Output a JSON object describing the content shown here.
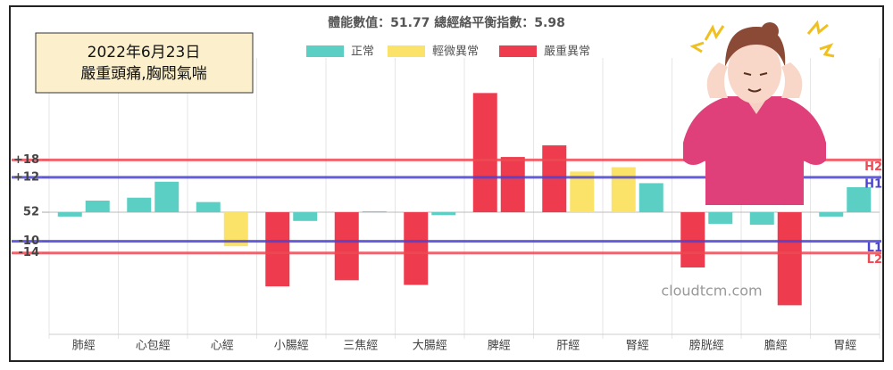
{
  "chart_data": {
    "type": "bar",
    "title": "體能數值：51.77 總經絡平衡指數：5.98",
    "date_box": {
      "date": "2022年6月23日",
      "symptoms": "嚴重頭痛,胸悶氣喘"
    },
    "watermark": "cloudtcm.com",
    "categories": [
      "肺經",
      "心包經",
      "心經",
      "小腸經",
      "三焦經",
      "大腸經",
      "脾經",
      "肝經",
      "腎經",
      "膀胱經",
      "膽經",
      "胃經"
    ],
    "legend": [
      {
        "name": "正常",
        "color": "#5ccfc4"
      },
      {
        "name": "輕微異常",
        "color": "#fbe36a"
      },
      {
        "name": "嚴重異常",
        "color": "#ee3b4d"
      }
    ],
    "series": [
      {
        "values": [
          -1.5,
          5,
          3.5,
          -25.5,
          -23.4,
          -25,
          41,
          23,
          15.5,
          -19,
          -4.3,
          -1.5
        ],
        "status": [
          0,
          0,
          0,
          2,
          2,
          2,
          2,
          2,
          1,
          2,
          0,
          0
        ]
      },
      {
        "values": [
          4,
          10.5,
          -11.7,
          -3,
          0.3,
          -1,
          19,
          14,
          10,
          -4,
          -32,
          8.6
        ],
        "status": [
          0,
          0,
          1,
          0,
          0,
          0,
          2,
          1,
          0,
          0,
          2,
          0
        ]
      }
    ],
    "ylim": [
      -42,
      50
    ],
    "yticks": [
      {
        "value": 18,
        "label": "+18"
      },
      {
        "value": 12,
        "label": "+12"
      },
      {
        "value": 0,
        "label": "52"
      },
      {
        "value": -10,
        "label": "-10"
      },
      {
        "value": -14,
        "label": "-14"
      }
    ],
    "reference_lines": [
      {
        "value": 18,
        "label": "H2",
        "color": "#ee4a55"
      },
      {
        "value": 12,
        "label": "H1",
        "color": "#4b43d6"
      },
      {
        "value": -10,
        "label": "L1",
        "color": "#4b43d6"
      },
      {
        "value": -14,
        "label": "L2",
        "color": "#ee4a55"
      }
    ],
    "grid": true
  }
}
